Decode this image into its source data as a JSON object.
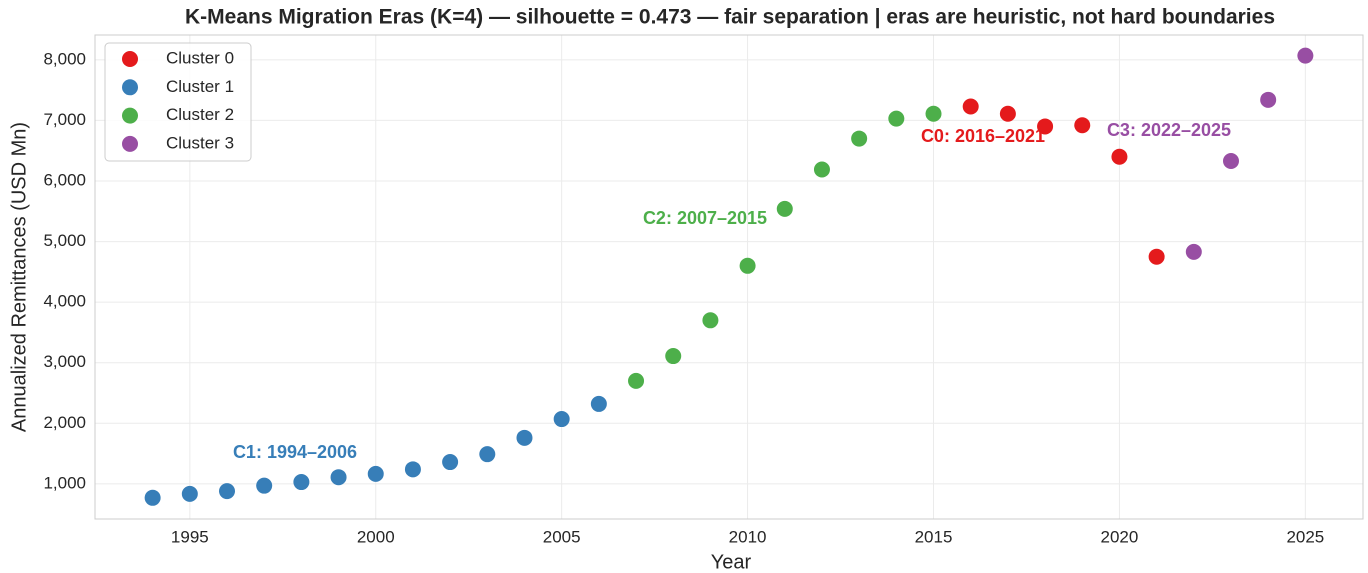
{
  "chart_data": {
    "type": "scatter",
    "title": "K-Means Migration Eras (K=4) — silhouette = 0.473 — fair separation | eras are heuristic, not hard boundaries",
    "x_label": "Year",
    "y_label": "Annualized Remittances (USD Mn)",
    "xlim": [
      1992.45,
      2026.55
    ],
    "ylim": [
      420,
      8410
    ],
    "xticks": [
      1995,
      2000,
      2005,
      2010,
      2015,
      2020,
      2025
    ],
    "yticks": [
      {
        "value": 1000,
        "label": "1,000"
      },
      {
        "value": 2000,
        "label": "2,000"
      },
      {
        "value": 3000,
        "label": "3,000"
      },
      {
        "value": 4000,
        "label": "4,000"
      },
      {
        "value": 5000,
        "label": "5,000"
      },
      {
        "value": 6000,
        "label": "6,000"
      },
      {
        "value": 7000,
        "label": "7,000"
      },
      {
        "value": 8000,
        "label": "8,000"
      }
    ],
    "grid": true,
    "legend": "upper left",
    "series": [
      {
        "name": "Cluster 0",
        "color": "#e41a1c",
        "x": [
          2016,
          2017,
          2018,
          2019,
          2020,
          2021
        ],
        "values": [
          7230,
          7110,
          6900,
          6920,
          6400,
          4750
        ]
      },
      {
        "name": "Cluster 1",
        "color": "#377eb8",
        "x": [
          1994,
          1995,
          1996,
          1997,
          1998,
          1999,
          2000,
          2001,
          2002,
          2003,
          2004,
          2005,
          2006
        ],
        "values": [
          770,
          835,
          880,
          970,
          1030,
          1110,
          1165,
          1240,
          1360,
          1490,
          1760,
          2070,
          2320
        ]
      },
      {
        "name": "Cluster 2",
        "color": "#4daf4a",
        "x": [
          2007,
          2008,
          2009,
          2010,
          2011,
          2012,
          2013,
          2014,
          2015
        ],
        "values": [
          2700,
          3110,
          3700,
          4600,
          5540,
          6190,
          6700,
          7030,
          7110
        ]
      },
      {
        "name": "Cluster 3",
        "color": "#984ea3",
        "x": [
          2022,
          2023,
          2024,
          2025
        ],
        "values": [
          4830,
          6330,
          7340,
          8070
        ]
      }
    ],
    "annotations": [
      "C1: 1994–2006",
      "C2: 2007–2015",
      "C0: 2016–2021",
      "C3: 2022–2025"
    ]
  }
}
